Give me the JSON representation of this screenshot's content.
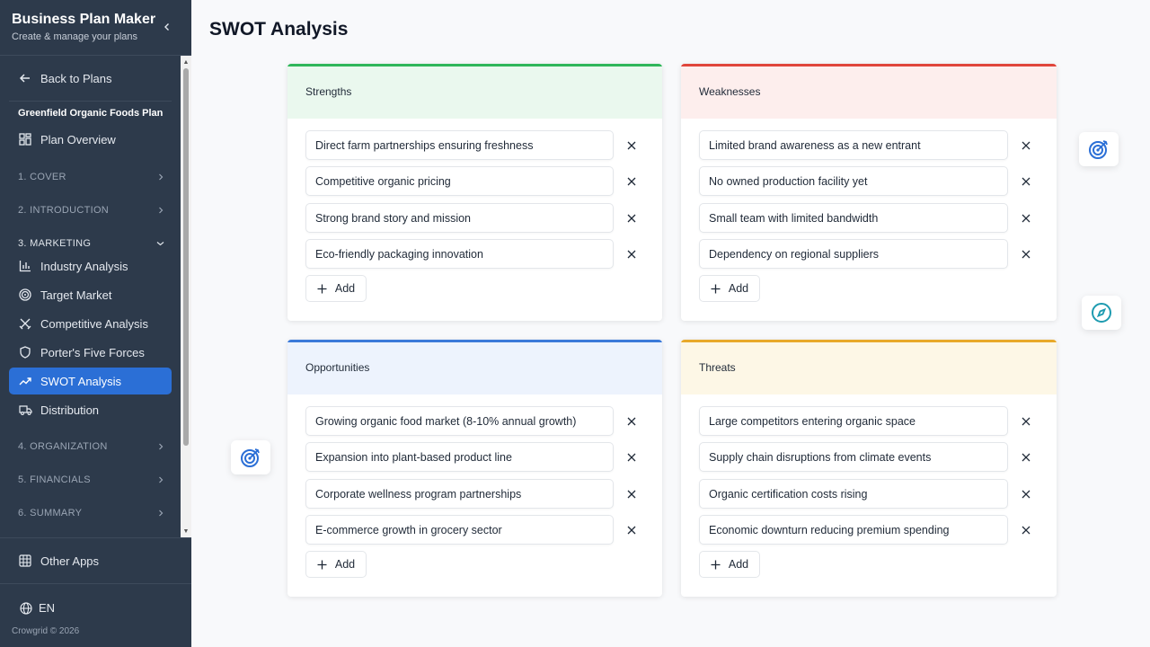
{
  "app": {
    "title": "Business Plan Maker",
    "subtitle": "Create & manage your plans"
  },
  "sidebar": {
    "back_label": "Back to Plans",
    "plan_name": "Greenfield Organic Foods Plan",
    "overview_label": "Plan Overview",
    "sections": {
      "cover": "1. COVER",
      "introduction": "2. INTRODUCTION",
      "marketing": "3. MARKETING",
      "organization": "4. ORGANIZATION",
      "financials": "5. FINANCIALS",
      "summary": "6. SUMMARY"
    },
    "marketing_items": [
      {
        "label": "Industry Analysis",
        "icon": "bar-chart-icon"
      },
      {
        "label": "Target Market",
        "icon": "target-icon"
      },
      {
        "label": "Competitive Analysis",
        "icon": "swords-icon"
      },
      {
        "label": "Porter's Five Forces",
        "icon": "shield-icon"
      },
      {
        "label": "SWOT Analysis",
        "icon": "trending-up-icon",
        "active": true
      },
      {
        "label": "Distribution",
        "icon": "truck-icon"
      }
    ],
    "other_apps_label": "Other Apps",
    "language": "EN",
    "copyright": "Crowgrid © 2026"
  },
  "main": {
    "title": "SWOT Analysis",
    "add_label": "Add",
    "quadrants": {
      "strengths": {
        "title": "Strengths",
        "color": "#2fb65a",
        "header_bg": "#eaf8ee",
        "items": [
          "Direct farm partnerships ensuring freshness",
          "Competitive organic pricing",
          "Strong brand story and mission",
          "Eco-friendly packaging innovation"
        ]
      },
      "weaknesses": {
        "title": "Weaknesses",
        "color": "#e0453b",
        "header_bg": "#fdeeed",
        "items": [
          "Limited brand awareness as a new entrant",
          "No owned production facility yet",
          "Small team with limited bandwidth",
          "Dependency on regional suppliers"
        ]
      },
      "opportunities": {
        "title": "Opportunities",
        "color": "#3b7ad9",
        "header_bg": "#edf3fd",
        "items": [
          "Growing organic food market (8-10% annual growth)",
          "Expansion into plant-based product line",
          "Corporate wellness program partnerships",
          "E-commerce growth in grocery sector"
        ]
      },
      "threats": {
        "title": "Threats",
        "color": "#e8a92a",
        "header_bg": "#fdf7e6",
        "items": [
          "Large competitors entering organic space",
          "Supply chain disruptions from climate events",
          "Organic certification costs rising",
          "Economic downturn reducing premium spending"
        ]
      }
    }
  },
  "decor": {
    "accent": "#2b6fd6",
    "icons": [
      "target-icon",
      "compass-icon",
      "target-icon"
    ]
  }
}
